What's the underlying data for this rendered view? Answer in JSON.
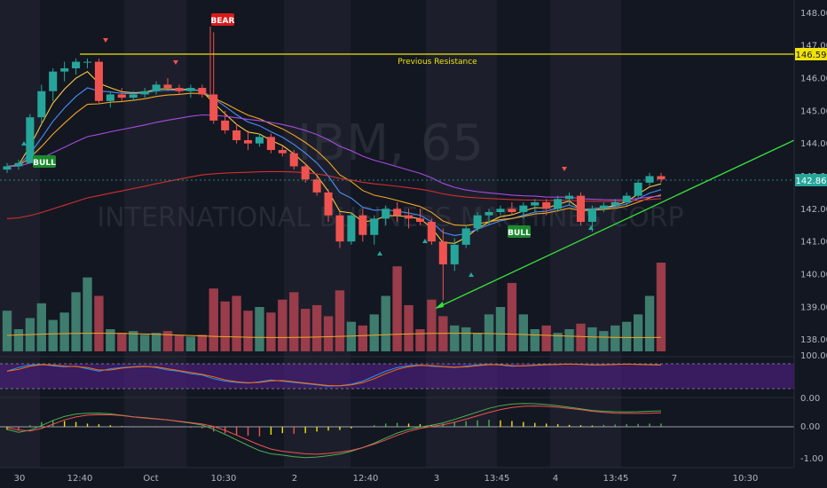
{
  "colors": {
    "background": "#131722",
    "session_shade": "#1c1f2b",
    "up": "#26a69a",
    "down": "#ef5350",
    "up_vol": "#3e7c6e",
    "down_vol": "#9a3c4a",
    "resistance": "#f0e20a",
    "trendline": "#3ae23a",
    "ema_fast": "#f5c842",
    "ema_mid": "#4c8ef5",
    "ema_slow": "#f5a623",
    "ma_purple": "#a64ce0",
    "ma_red": "#d32f2f",
    "osc_band": "#4a1e7a",
    "axis_text": "#b2b5be"
  },
  "watermark": {
    "symbol": "IBM, 65",
    "name": "INTERNATIONAL BUSINESS MACHINES CORP"
  },
  "annotations": {
    "resistance_label": "Previous Resistance",
    "resistance_value": "146.59",
    "last_price": "142.86",
    "bear_signal": "BEAR",
    "bull_signal_1": "BULL",
    "bull_signal_2": "BULL"
  },
  "chart_data": {
    "type": "candlestick",
    "price_axis": {
      "ticks": [
        "148.00",
        "147.00",
        "146.00",
        "145.00",
        "144.00",
        "143.00",
        "142.00",
        "141.00",
        "140.00",
        "139.00",
        "138.00"
      ],
      "range": [
        137.8,
        148.2
      ]
    },
    "stoch_axis": {
      "ticks": [
        "100.00",
        "0.00"
      ]
    },
    "macd_axis": {
      "ticks": [
        "0.00",
        "-1.00"
      ]
    },
    "time_axis": {
      "ticks": [
        "30",
        "12:40",
        "Oct",
        "10:30",
        "2",
        "12:40",
        "3",
        "13:45",
        "4",
        "13:45",
        "7",
        "10:30"
      ]
    },
    "resistance": 146.59,
    "last_price": 142.86,
    "candles": [
      [
        143.2,
        143.4,
        143.1,
        143.3
      ],
      [
        143.3,
        143.5,
        143.2,
        143.4
      ],
      [
        143.4,
        144.9,
        143.4,
        144.8
      ],
      [
        144.8,
        145.8,
        144.6,
        145.6
      ],
      [
        145.6,
        146.3,
        145.3,
        146.2
      ],
      [
        146.2,
        146.5,
        145.9,
        146.3
      ],
      [
        146.3,
        146.6,
        146.1,
        146.5
      ],
      [
        146.5,
        146.6,
        146.3,
        146.5
      ],
      [
        146.5,
        146.6,
        145.2,
        145.3
      ],
      [
        145.3,
        145.6,
        145.1,
        145.5
      ],
      [
        145.5,
        145.7,
        145.3,
        145.4
      ],
      [
        145.4,
        145.6,
        145.3,
        145.5
      ],
      [
        145.5,
        145.7,
        145.4,
        145.6
      ],
      [
        145.6,
        145.9,
        145.5,
        145.8
      ],
      [
        145.8,
        146.0,
        145.6,
        145.7
      ],
      [
        145.7,
        145.8,
        145.5,
        145.6
      ],
      [
        145.6,
        145.8,
        145.4,
        145.7
      ],
      [
        145.7,
        145.8,
        145.4,
        145.5
      ],
      [
        145.5,
        147.4,
        144.6,
        144.7
      ],
      [
        144.7,
        145.0,
        144.3,
        144.4
      ],
      [
        144.4,
        144.6,
        144.0,
        144.1
      ],
      [
        144.1,
        144.4,
        143.8,
        144.0
      ],
      [
        144.0,
        144.3,
        143.9,
        144.2
      ],
      [
        144.2,
        144.3,
        143.7,
        143.8
      ],
      [
        143.8,
        143.9,
        143.6,
        143.7
      ],
      [
        143.7,
        143.8,
        143.2,
        143.3
      ],
      [
        143.3,
        143.4,
        142.8,
        142.9
      ],
      [
        142.9,
        143.0,
        142.4,
        142.5
      ],
      [
        142.5,
        142.6,
        141.6,
        141.8
      ],
      [
        141.8,
        141.9,
        140.8,
        141.0
      ],
      [
        141.0,
        141.9,
        140.9,
        141.8
      ],
      [
        141.8,
        142.0,
        141.0,
        141.2
      ],
      [
        141.2,
        141.8,
        140.9,
        141.7
      ],
      [
        141.7,
        142.1,
        141.5,
        142.0
      ],
      [
        142.0,
        142.2,
        141.6,
        141.8
      ],
      [
        141.8,
        142.0,
        141.4,
        141.7
      ],
      [
        141.7,
        142.0,
        141.5,
        141.6
      ],
      [
        141.6,
        141.7,
        140.9,
        141.0
      ],
      [
        141.0,
        141.4,
        139.2,
        140.3
      ],
      [
        140.3,
        141.1,
        140.1,
        140.9
      ],
      [
        140.9,
        141.5,
        140.8,
        141.4
      ],
      [
        141.4,
        141.9,
        141.3,
        141.8
      ],
      [
        141.8,
        142.0,
        141.5,
        141.9
      ],
      [
        141.9,
        142.1,
        141.8,
        142.0
      ],
      [
        142.0,
        142.2,
        141.8,
        141.9
      ],
      [
        141.9,
        142.2,
        141.7,
        142.1
      ],
      [
        142.1,
        142.3,
        141.9,
        142.2
      ],
      [
        142.2,
        142.3,
        141.8,
        142.0
      ],
      [
        142.0,
        142.4,
        141.9,
        142.3
      ],
      [
        142.3,
        142.5,
        142.1,
        142.4
      ],
      [
        142.4,
        142.5,
        141.5,
        141.6
      ],
      [
        141.6,
        142.1,
        141.3,
        142.0
      ],
      [
        142.0,
        142.2,
        141.9,
        142.1
      ],
      [
        142.1,
        142.3,
        142.0,
        142.2
      ],
      [
        142.2,
        142.5,
        142.1,
        142.4
      ],
      [
        142.4,
        142.9,
        142.3,
        142.8
      ],
      [
        142.8,
        143.1,
        142.7,
        143.0
      ],
      [
        143.0,
        143.1,
        142.8,
        142.9
      ]
    ],
    "volume": [
      2.2,
      1.2,
      1.8,
      2.6,
      1.7,
      2.1,
      3.2,
      4.0,
      3.0,
      1.2,
      1.0,
      1.1,
      0.9,
      1.0,
      1.1,
      0.9,
      0.8,
      0.9,
      3.4,
      2.7,
      3.0,
      2.2,
      2.4,
      2.1,
      2.8,
      3.2,
      2.3,
      2.5,
      1.9,
      3.3,
      1.6,
      1.4,
      2.0,
      3.0,
      4.6,
      2.5,
      1.2,
      2.8,
      1.9,
      1.4,
      1.3,
      1.0,
      2.0,
      2.4,
      3.7,
      2.0,
      1.2,
      1.4,
      1.0,
      1.2,
      1.5,
      1.3,
      1.1,
      1.4,
      1.6,
      2.0,
      3.0,
      4.8
    ],
    "stoch": [
      70,
      85,
      95,
      98,
      92,
      88,
      90,
      80,
      70,
      80,
      85,
      88,
      90,
      85,
      75,
      70,
      60,
      55,
      40,
      30,
      25,
      22,
      28,
      35,
      30,
      25,
      20,
      15,
      10,
      12,
      18,
      30,
      50,
      70,
      85,
      92,
      95,
      90,
      88,
      85,
      90,
      95,
      98,
      95,
      90,
      92,
      95,
      97,
      98,
      99,
      97,
      95,
      96,
      98,
      99,
      97,
      96,
      95
    ],
    "macd_hist": [
      -0.1,
      -0.12,
      0.05,
      0.15,
      0.2,
      0.18,
      0.15,
      0.1,
      0.08,
      0.05,
      0.02,
      0.01,
      0.02,
      0.01,
      0.0,
      -0.02,
      -0.03,
      -0.05,
      -0.15,
      -0.2,
      -0.25,
      -0.28,
      -0.3,
      -0.25,
      -0.2,
      -0.22,
      -0.2,
      -0.15,
      -0.12,
      -0.1,
      -0.05,
      0.0,
      0.05,
      0.1,
      0.12,
      0.1,
      0.08,
      0.06,
      0.1,
      0.15,
      0.18,
      0.2,
      0.22,
      0.2,
      0.18,
      0.15,
      0.12,
      0.1,
      0.08,
      0.06,
      0.05,
      0.04,
      0.06,
      0.07,
      0.08,
      0.09,
      0.1,
      0.1
    ]
  }
}
